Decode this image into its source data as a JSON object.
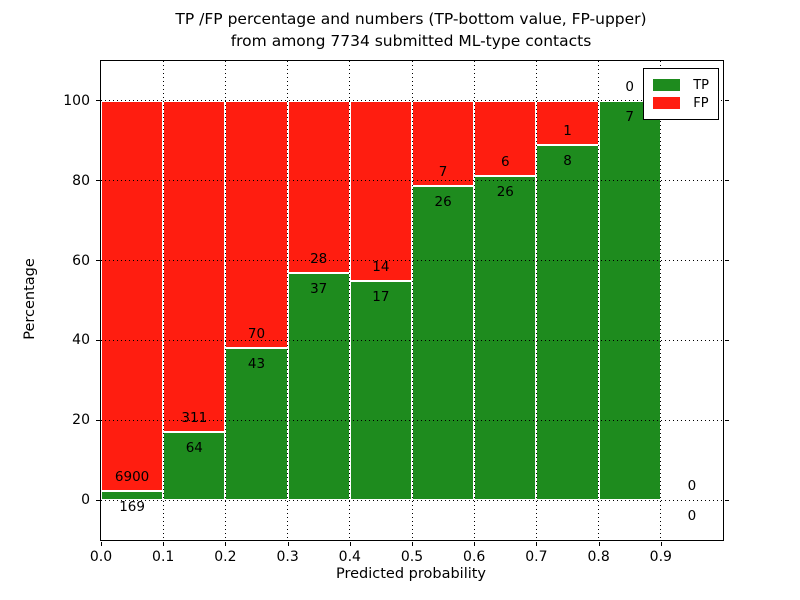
{
  "title": {
    "line1": "TP /FP percentage and numbers (TP-bottom value, FP-upper)",
    "line2": "from among 7734 submitted ML-type contacts"
  },
  "chart_data": {
    "type": "bar",
    "variant": "stacked-percentage-histogram",
    "title": "TP /FP percentage and numbers (TP-bottom value, FP-upper) from among 7734 submitted ML-type contacts",
    "title_line1": "TP /FP percentage and numbers (TP-bottom value, FP-upper)",
    "title_line2": "from among 7734 submitted ML-type contacts",
    "xlabel": "Predicted probability",
    "ylabel": "Percentage",
    "xlim": [
      0.0,
      1.0
    ],
    "ylim": [
      -10,
      110
    ],
    "bin_width": 0.1,
    "bins_start": [
      0.0,
      0.1,
      0.2,
      0.3,
      0.4,
      0.5,
      0.6,
      0.7,
      0.8,
      0.9
    ],
    "xticks": [
      "0.0",
      "0.1",
      "0.2",
      "0.3",
      "0.4",
      "0.5",
      "0.6",
      "0.7",
      "0.8",
      "0.9"
    ],
    "yticks": [
      0,
      20,
      40,
      60,
      80,
      100
    ],
    "grid": "dotted black lines drawn above bars, white bar edges",
    "total_contacts": 7734,
    "series": [
      {
        "name": "TP",
        "color": "#1e8b1e",
        "counts": [
          169,
          64,
          43,
          37,
          17,
          26,
          26,
          8,
          7,
          0
        ]
      },
      {
        "name": "FP",
        "color": "#ff1d10",
        "counts": [
          6900,
          311,
          70,
          28,
          14,
          7,
          6,
          1,
          0,
          0
        ]
      }
    ],
    "tp_percent": [
      2.39,
      17.07,
      38.05,
      56.92,
      54.84,
      78.79,
      81.25,
      88.89,
      100.0,
      null
    ],
    "legend": {
      "position": "upper right",
      "entries": [
        "TP",
        "FP"
      ]
    }
  }
}
